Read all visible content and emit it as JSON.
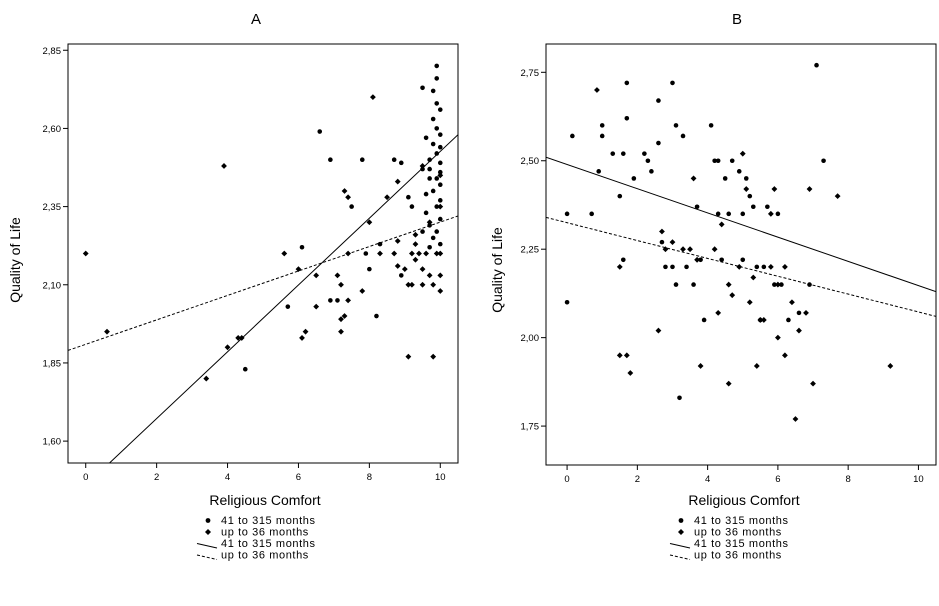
{
  "chart_data": [
    {
      "type": "scatter",
      "panel_title": "A",
      "xlabel": "Religious Comfort",
      "ylabel": "Quality of Life",
      "xlim": [
        -0.5,
        10.5
      ],
      "ylim": [
        1.53,
        2.87
      ],
      "x_ticks": [
        0,
        2,
        4,
        6,
        8,
        10
      ],
      "x_tick_labels": [
        "0",
        "2",
        "4",
        "6",
        "8",
        "10"
      ],
      "y_ticks": [
        1.6,
        1.85,
        2.1,
        2.35,
        2.6,
        2.85
      ],
      "y_tick_labels": [
        "1,60",
        "1,85",
        "2,10",
        "2,35",
        "2,60",
        "2,85"
      ],
      "grid": false,
      "series": [
        {
          "name": "41 to 315 months",
          "marker": "circle",
          "color": "#000000",
          "points": [
            [
              9.9,
              2.8
            ],
            [
              9.9,
              2.76
            ],
            [
              9.5,
              2.73
            ],
            [
              9.8,
              2.72
            ],
            [
              9.9,
              2.68
            ],
            [
              10.0,
              2.66
            ],
            [
              9.8,
              2.63
            ],
            [
              9.9,
              2.6
            ],
            [
              10.0,
              2.58
            ],
            [
              9.6,
              2.57
            ],
            [
              9.8,
              2.55
            ],
            [
              10.0,
              2.54
            ],
            [
              9.9,
              2.52
            ],
            [
              9.7,
              2.5
            ],
            [
              10.0,
              2.49
            ],
            [
              9.5,
              2.47
            ],
            [
              9.7,
              2.47
            ],
            [
              10.0,
              2.46
            ],
            [
              9.9,
              2.44
            ],
            [
              9.7,
              2.44
            ],
            [
              10.0,
              2.42
            ],
            [
              9.8,
              2.4
            ],
            [
              9.6,
              2.39
            ],
            [
              10.0,
              2.37
            ],
            [
              9.9,
              2.35
            ],
            [
              9.2,
              2.35
            ],
            [
              9.6,
              2.33
            ],
            [
              10.0,
              2.31
            ],
            [
              9.7,
              2.29
            ],
            [
              9.9,
              2.27
            ],
            [
              9.5,
              2.27
            ],
            [
              9.8,
              2.25
            ],
            [
              10.0,
              2.23
            ],
            [
              9.7,
              2.22
            ],
            [
              6.9,
              2.5
            ],
            [
              6.6,
              2.59
            ],
            [
              7.8,
              2.5
            ],
            [
              8.7,
              2.5
            ],
            [
              8.9,
              2.49
            ],
            [
              9.1,
              2.38
            ],
            [
              7.5,
              2.35
            ],
            [
              8.3,
              2.23
            ],
            [
              8.0,
              2.15
            ],
            [
              7.9,
              2.2
            ],
            [
              6.1,
              2.22
            ],
            [
              5.7,
              2.03
            ],
            [
              6.9,
              2.05
            ],
            [
              7.1,
              2.05
            ],
            [
              8.2,
              2.0
            ],
            [
              4.5,
              1.83
            ],
            [
              8.9,
              2.13
            ]
          ]
        },
        {
          "name": "up to 36 months",
          "marker": "diamond",
          "color": "#000000",
          "points": [
            [
              0.0,
              2.2
            ],
            [
              0.6,
              1.95
            ],
            [
              3.4,
              1.8
            ],
            [
              3.9,
              2.48
            ],
            [
              4.0,
              1.9
            ],
            [
              4.3,
              1.93
            ],
            [
              4.4,
              1.93
            ],
            [
              5.6,
              2.2
            ],
            [
              6.0,
              2.15
            ],
            [
              6.1,
              1.93
            ],
            [
              6.2,
              1.95
            ],
            [
              6.5,
              2.03
            ],
            [
              6.5,
              2.13
            ],
            [
              7.1,
              2.13
            ],
            [
              7.2,
              2.1
            ],
            [
              7.2,
              1.95
            ],
            [
              7.2,
              1.99
            ],
            [
              7.3,
              2.0
            ],
            [
              7.3,
              2.4
            ],
            [
              7.4,
              2.05
            ],
            [
              7.4,
              2.38
            ],
            [
              7.4,
              2.2
            ],
            [
              7.8,
              2.08
            ],
            [
              8.0,
              2.3
            ],
            [
              8.1,
              2.7
            ],
            [
              8.3,
              2.2
            ],
            [
              8.5,
              2.38
            ],
            [
              8.7,
              2.2
            ],
            [
              8.8,
              2.24
            ],
            [
              8.8,
              2.43
            ],
            [
              8.8,
              2.16
            ],
            [
              9.0,
              2.15
            ],
            [
              9.1,
              2.1
            ],
            [
              9.1,
              1.87
            ],
            [
              9.2,
              2.2
            ],
            [
              9.2,
              2.1
            ],
            [
              9.3,
              2.18
            ],
            [
              9.3,
              2.23
            ],
            [
              9.3,
              2.26
            ],
            [
              9.4,
              2.2
            ],
            [
              9.5,
              2.1
            ],
            [
              9.5,
              2.15
            ],
            [
              9.5,
              2.48
            ],
            [
              9.6,
              2.2
            ],
            [
              9.7,
              2.3
            ],
            [
              9.7,
              2.13
            ],
            [
              9.8,
              1.87
            ],
            [
              9.8,
              2.1
            ],
            [
              9.9,
              2.2
            ],
            [
              10.0,
              2.08
            ],
            [
              10.0,
              2.13
            ],
            [
              10.0,
              2.2
            ],
            [
              10.0,
              2.35
            ],
            [
              10.0,
              2.45
            ]
          ]
        }
      ],
      "fit_lines": [
        {
          "name": "41 to 315 months",
          "style": "solid",
          "points": [
            [
              0.67,
              1.53
            ],
            [
              10.5,
              2.58
            ]
          ]
        },
        {
          "name": "up to 36 months",
          "style": "dashed",
          "points": [
            [
              -0.5,
              1.89
            ],
            [
              10.5,
              2.32
            ]
          ]
        }
      ],
      "legend": [
        {
          "label": "41 to 315 months",
          "symbol": "circle"
        },
        {
          "label": "up to 36 months",
          "symbol": "diamond"
        },
        {
          "label": "41 to 315 months",
          "symbol": "solid-line"
        },
        {
          "label": "up to 36 months",
          "symbol": "dashed-line"
        }
      ],
      "legend_position": "bottom"
    },
    {
      "type": "scatter",
      "panel_title": "B",
      "xlabel": "Religious Comfort",
      "ylabel": "Quality of Life",
      "xlim": [
        -0.6,
        10.5
      ],
      "ylim": [
        1.64,
        2.83
      ],
      "x_ticks": [
        0,
        2,
        4,
        6,
        8,
        10
      ],
      "x_tick_labels": [
        "0",
        "2",
        "4",
        "6",
        "8",
        "10"
      ],
      "y_ticks": [
        1.75,
        2.0,
        2.25,
        2.5,
        2.75
      ],
      "y_tick_labels": [
        "1,75",
        "2,00",
        "2,25",
        "2,50",
        "2,75"
      ],
      "grid": false,
      "series": [
        {
          "name": "41 to 315 months",
          "marker": "circle",
          "color": "#000000",
          "points": [
            [
              0.0,
              2.35
            ],
            [
              0.0,
              2.1
            ],
            [
              0.15,
              2.57
            ],
            [
              0.7,
              2.35
            ],
            [
              0.9,
              2.47
            ],
            [
              1.0,
              2.6
            ],
            [
              1.0,
              2.57
            ],
            [
              1.3,
              2.52
            ],
            [
              1.5,
              2.4
            ],
            [
              1.6,
              2.52
            ],
            [
              1.6,
              2.22
            ],
            [
              1.7,
              2.72
            ],
            [
              1.7,
              2.62
            ],
            [
              1.9,
              2.45
            ],
            [
              2.2,
              2.52
            ],
            [
              2.3,
              2.5
            ],
            [
              2.4,
              2.47
            ],
            [
              2.6,
              2.67
            ],
            [
              2.6,
              2.55
            ],
            [
              2.7,
              2.27
            ],
            [
              2.8,
              2.2
            ],
            [
              3.0,
              2.72
            ],
            [
              3.0,
              2.2
            ],
            [
              3.1,
              2.15
            ],
            [
              3.1,
              2.6
            ],
            [
              3.2,
              1.83
            ],
            [
              3.3,
              2.57
            ],
            [
              3.4,
              2.2
            ],
            [
              3.6,
              2.15
            ],
            [
              3.7,
              2.37
            ],
            [
              3.8,
              2.22
            ],
            [
              3.9,
              2.05
            ],
            [
              4.1,
              2.6
            ],
            [
              4.2,
              2.5
            ],
            [
              4.3,
              2.5
            ],
            [
              4.3,
              2.35
            ],
            [
              4.4,
              2.22
            ],
            [
              4.5,
              2.45
            ],
            [
              4.6,
              2.35
            ],
            [
              4.7,
              2.5
            ],
            [
              4.9,
              2.47
            ],
            [
              5.0,
              2.35
            ],
            [
              5.0,
              2.22
            ],
            [
              5.1,
              2.45
            ],
            [
              5.2,
              2.4
            ],
            [
              5.3,
              2.37
            ],
            [
              5.4,
              2.2
            ],
            [
              5.5,
              2.05
            ],
            [
              5.6,
              2.2
            ],
            [
              5.7,
              2.37
            ],
            [
              5.9,
              2.15
            ],
            [
              6.0,
              2.35
            ],
            [
              6.1,
              2.15
            ],
            [
              6.3,
              2.05
            ],
            [
              6.6,
              2.07
            ],
            [
              6.9,
              2.15
            ],
            [
              7.1,
              2.77
            ],
            [
              7.3,
              2.5
            ]
          ]
        },
        {
          "name": "up to 36 months",
          "marker": "diamond",
          "color": "#000000",
          "points": [
            [
              0.85,
              2.7
            ],
            [
              1.5,
              1.95
            ],
            [
              1.7,
              1.95
            ],
            [
              1.8,
              1.9
            ],
            [
              1.5,
              2.2
            ],
            [
              2.6,
              2.02
            ],
            [
              2.7,
              2.3
            ],
            [
              2.8,
              2.25
            ],
            [
              3.0,
              2.27
            ],
            [
              3.3,
              2.25
            ],
            [
              3.5,
              2.25
            ],
            [
              3.6,
              2.45
            ],
            [
              3.7,
              2.22
            ],
            [
              3.8,
              1.92
            ],
            [
              4.2,
              2.25
            ],
            [
              4.3,
              2.07
            ],
            [
              4.4,
              2.32
            ],
            [
              4.6,
              2.15
            ],
            [
              4.6,
              1.87
            ],
            [
              4.7,
              2.12
            ],
            [
              4.9,
              2.2
            ],
            [
              5.0,
              2.52
            ],
            [
              5.1,
              2.42
            ],
            [
              5.2,
              2.1
            ],
            [
              5.3,
              2.17
            ],
            [
              5.4,
              1.92
            ],
            [
              5.5,
              2.05
            ],
            [
              5.6,
              2.05
            ],
            [
              5.8,
              2.35
            ],
            [
              5.8,
              2.2
            ],
            [
              5.9,
              2.42
            ],
            [
              6.0,
              2.15
            ],
            [
              6.0,
              2.0
            ],
            [
              6.2,
              2.2
            ],
            [
              6.2,
              1.95
            ],
            [
              6.4,
              2.1
            ],
            [
              6.5,
              1.77
            ],
            [
              6.6,
              2.02
            ],
            [
              6.8,
              2.07
            ],
            [
              6.9,
              2.42
            ],
            [
              7.0,
              1.87
            ],
            [
              7.7,
              2.4
            ],
            [
              9.2,
              1.92
            ]
          ]
        }
      ],
      "fit_lines": [
        {
          "name": "41 to 315 months",
          "style": "solid",
          "points": [
            [
              -0.6,
              2.51
            ],
            [
              10.5,
              2.13
            ]
          ]
        },
        {
          "name": "up to 36 months",
          "style": "dashed",
          "points": [
            [
              -0.6,
              2.34
            ],
            [
              10.5,
              2.06
            ]
          ]
        }
      ],
      "legend": [
        {
          "label": "41 to 315 months",
          "symbol": "circle"
        },
        {
          "label": "up to 36 months",
          "symbol": "diamond"
        },
        {
          "label": "41 to 315 months",
          "symbol": "solid-line"
        },
        {
          "label": "up to 36 months",
          "symbol": "dashed-line"
        }
      ],
      "legend_position": "bottom"
    }
  ]
}
